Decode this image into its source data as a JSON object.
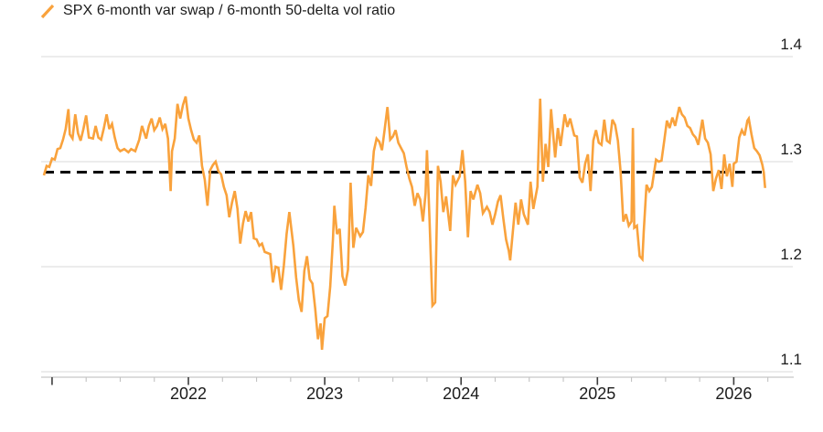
{
  "legend": {
    "label": "SPX 6-month var swap / 6-month 50-delta vol ratio",
    "marker_icon": "slash-icon"
  },
  "colors": {
    "series": "#F9A23C",
    "reference_line": "#000000",
    "grid": "#D8D8D8",
    "axis_line": "#C8C8C8",
    "tick_minor": "#C2C2C2",
    "tick_major": "#3D3D3D",
    "text": "#1B1B1B",
    "background": "#FFFFFF"
  },
  "chart_data": {
    "type": "line",
    "title": "",
    "xlabel": "",
    "ylabel": "",
    "grid": "horizontal",
    "legend_position": "top-left",
    "y_axis_side": "right",
    "x_ticks": [
      2022,
      2023,
      2024,
      2025,
      2026
    ],
    "x_tick_labels": [
      "2022",
      "2023",
      "2024",
      "2025",
      "2026"
    ],
    "x_minor_tick_step_years": 0.25,
    "x_domain": [
      2020.92,
      2026.44
    ],
    "y_ticks": [
      1.1,
      1.2,
      1.3,
      1.4
    ],
    "y_tick_labels": [
      "1.1",
      "1.2",
      "1.3",
      "1.4"
    ],
    "y_domain": [
      1.1,
      1.4
    ],
    "reference_line": {
      "value": 1.29,
      "style": "dashed",
      "color": "#000000"
    },
    "series": [
      {
        "name": "SPX 6-month var swap / 6-month 50-delta vol ratio",
        "color": "#F9A23C",
        "points": [
          [
            2020.94,
            1.287
          ],
          [
            2020.96,
            1.296
          ],
          [
            2020.98,
            1.295
          ],
          [
            2021.0,
            1.303
          ],
          [
            2021.02,
            1.302
          ],
          [
            2021.04,
            1.312
          ],
          [
            2021.06,
            1.313
          ],
          [
            2021.08,
            1.321
          ],
          [
            2021.1,
            1.331
          ],
          [
            2021.12,
            1.35
          ],
          [
            2021.13,
            1.326
          ],
          [
            2021.15,
            1.322
          ],
          [
            2021.17,
            1.345
          ],
          [
            2021.19,
            1.327
          ],
          [
            2021.21,
            1.32
          ],
          [
            2021.23,
            1.331
          ],
          [
            2021.25,
            1.344
          ],
          [
            2021.27,
            1.323
          ],
          [
            2021.3,
            1.322
          ],
          [
            2021.32,
            1.334
          ],
          [
            2021.34,
            1.323
          ],
          [
            2021.36,
            1.321
          ],
          [
            2021.38,
            1.332
          ],
          [
            2021.4,
            1.345
          ],
          [
            2021.42,
            1.331
          ],
          [
            2021.44,
            1.336
          ],
          [
            2021.46,
            1.323
          ],
          [
            2021.48,
            1.313
          ],
          [
            2021.5,
            1.31
          ],
          [
            2021.53,
            1.312
          ],
          [
            2021.56,
            1.309
          ],
          [
            2021.58,
            1.312
          ],
          [
            2021.61,
            1.31
          ],
          [
            2021.64,
            1.321
          ],
          [
            2021.66,
            1.334
          ],
          [
            2021.69,
            1.322
          ],
          [
            2021.71,
            1.334
          ],
          [
            2021.73,
            1.341
          ],
          [
            2021.75,
            1.33
          ],
          [
            2021.77,
            1.334
          ],
          [
            2021.79,
            1.342
          ],
          [
            2021.81,
            1.331
          ],
          [
            2021.83,
            1.336
          ],
          [
            2021.85,
            1.322
          ],
          [
            2021.87,
            1.272
          ],
          [
            2021.88,
            1.31
          ],
          [
            2021.9,
            1.322
          ],
          [
            2021.92,
            1.355
          ],
          [
            2021.94,
            1.341
          ],
          [
            2021.96,
            1.354
          ],
          [
            2021.98,
            1.362
          ],
          [
            2022.0,
            1.341
          ],
          [
            2022.02,
            1.33
          ],
          [
            2022.04,
            1.321
          ],
          [
            2022.06,
            1.318
          ],
          [
            2022.08,
            1.325
          ],
          [
            2022.1,
            1.296
          ],
          [
            2022.12,
            1.283
          ],
          [
            2022.14,
            1.258
          ],
          [
            2022.16,
            1.292
          ],
          [
            2022.18,
            1.297
          ],
          [
            2022.2,
            1.3
          ],
          [
            2022.22,
            1.291
          ],
          [
            2022.24,
            1.288
          ],
          [
            2022.26,
            1.276
          ],
          [
            2022.28,
            1.268
          ],
          [
            2022.3,
            1.247
          ],
          [
            2022.32,
            1.261
          ],
          [
            2022.34,
            1.272
          ],
          [
            2022.36,
            1.255
          ],
          [
            2022.38,
            1.222
          ],
          [
            2022.4,
            1.241
          ],
          [
            2022.42,
            1.253
          ],
          [
            2022.44,
            1.243
          ],
          [
            2022.46,
            1.252
          ],
          [
            2022.48,
            1.227
          ],
          [
            2022.5,
            1.226
          ],
          [
            2022.52,
            1.22
          ],
          [
            2022.54,
            1.222
          ],
          [
            2022.56,
            1.214
          ],
          [
            2022.58,
            1.213
          ],
          [
            2022.6,
            1.212
          ],
          [
            2022.62,
            1.185
          ],
          [
            2022.64,
            1.2
          ],
          [
            2022.66,
            1.199
          ],
          [
            2022.68,
            1.178
          ],
          [
            2022.7,
            1.201
          ],
          [
            2022.72,
            1.231
          ],
          [
            2022.74,
            1.252
          ],
          [
            2022.77,
            1.22
          ],
          [
            2022.79,
            1.19
          ],
          [
            2022.81,
            1.168
          ],
          [
            2022.83,
            1.157
          ],
          [
            2022.85,
            1.196
          ],
          [
            2022.87,
            1.21
          ],
          [
            2022.89,
            1.188
          ],
          [
            2022.91,
            1.184
          ],
          [
            2022.93,
            1.16
          ],
          [
            2022.95,
            1.131
          ],
          [
            2022.97,
            1.146
          ],
          [
            2022.98,
            1.121
          ],
          [
            2023.0,
            1.151
          ],
          [
            2023.02,
            1.153
          ],
          [
            2023.04,
            1.181
          ],
          [
            2023.06,
            1.226
          ],
          [
            2023.07,
            1.258
          ],
          [
            2023.09,
            1.231
          ],
          [
            2023.11,
            1.236
          ],
          [
            2023.13,
            1.191
          ],
          [
            2023.15,
            1.182
          ],
          [
            2023.17,
            1.197
          ],
          [
            2023.19,
            1.28
          ],
          [
            2023.21,
            1.218
          ],
          [
            2023.23,
            1.237
          ],
          [
            2023.26,
            1.229
          ],
          [
            2023.28,
            1.233
          ],
          [
            2023.3,
            1.256
          ],
          [
            2023.32,
            1.287
          ],
          [
            2023.34,
            1.277
          ],
          [
            2023.36,
            1.31
          ],
          [
            2023.38,
            1.322
          ],
          [
            2023.4,
            1.319
          ],
          [
            2023.42,
            1.311
          ],
          [
            2023.44,
            1.331
          ],
          [
            2023.46,
            1.352
          ],
          [
            2023.48,
            1.321
          ],
          [
            2023.5,
            1.324
          ],
          [
            2023.52,
            1.33
          ],
          [
            2023.54,
            1.318
          ],
          [
            2023.56,
            1.313
          ],
          [
            2023.58,
            1.308
          ],
          [
            2023.6,
            1.295
          ],
          [
            2023.62,
            1.284
          ],
          [
            2023.64,
            1.276
          ],
          [
            2023.66,
            1.258
          ],
          [
            2023.68,
            1.27
          ],
          [
            2023.7,
            1.264
          ],
          [
            2023.72,
            1.243
          ],
          [
            2023.74,
            1.27
          ],
          [
            2023.75,
            1.311
          ],
          [
            2023.77,
            1.24
          ],
          [
            2023.79,
            1.163
          ],
          [
            2023.81,
            1.166
          ],
          [
            2023.83,
            1.296
          ],
          [
            2023.85,
            1.281
          ],
          [
            2023.87,
            1.252
          ],
          [
            2023.89,
            1.267
          ],
          [
            2023.92,
            1.234
          ],
          [
            2023.94,
            1.287
          ],
          [
            2023.96,
            1.278
          ],
          [
            2023.99,
            1.286
          ],
          [
            2024.01,
            1.311
          ],
          [
            2024.03,
            1.281
          ],
          [
            2024.05,
            1.228
          ],
          [
            2024.07,
            1.272
          ],
          [
            2024.09,
            1.264
          ],
          [
            2024.12,
            1.278
          ],
          [
            2024.14,
            1.27
          ],
          [
            2024.16,
            1.251
          ],
          [
            2024.19,
            1.257
          ],
          [
            2024.21,
            1.252
          ],
          [
            2024.23,
            1.24
          ],
          [
            2024.25,
            1.25
          ],
          [
            2024.27,
            1.262
          ],
          [
            2024.29,
            1.268
          ],
          [
            2024.31,
            1.246
          ],
          [
            2024.33,
            1.226
          ],
          [
            2024.35,
            1.215
          ],
          [
            2024.36,
            1.206
          ],
          [
            2024.38,
            1.234
          ],
          [
            2024.4,
            1.261
          ],
          [
            2024.42,
            1.24
          ],
          [
            2024.44,
            1.264
          ],
          [
            2024.46,
            1.25
          ],
          [
            2024.49,
            1.24
          ],
          [
            2024.51,
            1.281
          ],
          [
            2024.53,
            1.255
          ],
          [
            2024.56,
            1.276
          ],
          [
            2024.58,
            1.36
          ],
          [
            2024.6,
            1.281
          ],
          [
            2024.62,
            1.317
          ],
          [
            2024.64,
            1.295
          ],
          [
            2024.66,
            1.35
          ],
          [
            2024.69,
            1.304
          ],
          [
            2024.71,
            1.332
          ],
          [
            2024.73,
            1.315
          ],
          [
            2024.76,
            1.345
          ],
          [
            2024.78,
            1.333
          ],
          [
            2024.8,
            1.341
          ],
          [
            2024.83,
            1.325
          ],
          [
            2024.85,
            1.324
          ],
          [
            2024.87,
            1.285
          ],
          [
            2024.89,
            1.28
          ],
          [
            2024.91,
            1.298
          ],
          [
            2024.93,
            1.307
          ],
          [
            2024.95,
            1.272
          ],
          [
            2024.97,
            1.32
          ],
          [
            2024.99,
            1.33
          ],
          [
            2025.01,
            1.318
          ],
          [
            2025.03,
            1.316
          ],
          [
            2025.05,
            1.34
          ],
          [
            2025.07,
            1.32
          ],
          [
            2025.09,
            1.318
          ],
          [
            2025.11,
            1.34
          ],
          [
            2025.13,
            1.335
          ],
          [
            2025.15,
            1.32
          ],
          [
            2025.17,
            1.29
          ],
          [
            2025.19,
            1.243
          ],
          [
            2025.21,
            1.25
          ],
          [
            2025.23,
            1.239
          ],
          [
            2025.25,
            1.243
          ],
          [
            2025.26,
            1.332
          ],
          [
            2025.27,
            1.237
          ],
          [
            2025.29,
            1.239
          ],
          [
            2025.31,
            1.21
          ],
          [
            2025.33,
            1.207
          ],
          [
            2025.34,
            1.234
          ],
          [
            2025.36,
            1.278
          ],
          [
            2025.38,
            1.272
          ],
          [
            2025.4,
            1.276
          ],
          [
            2025.43,
            1.302
          ],
          [
            2025.45,
            1.3
          ],
          [
            2025.47,
            1.301
          ],
          [
            2025.49,
            1.32
          ],
          [
            2025.51,
            1.339
          ],
          [
            2025.53,
            1.332
          ],
          [
            2025.55,
            1.342
          ],
          [
            2025.57,
            1.334
          ],
          [
            2025.6,
            1.352
          ],
          [
            2025.62,
            1.345
          ],
          [
            2025.64,
            1.342
          ],
          [
            2025.66,
            1.334
          ],
          [
            2025.68,
            1.332
          ],
          [
            2025.7,
            1.326
          ],
          [
            2025.72,
            1.323
          ],
          [
            2025.74,
            1.316
          ],
          [
            2025.77,
            1.34
          ],
          [
            2025.79,
            1.322
          ],
          [
            2025.81,
            1.318
          ],
          [
            2025.83,
            1.307
          ],
          [
            2025.85,
            1.272
          ],
          [
            2025.87,
            1.284
          ],
          [
            2025.89,
            1.292
          ],
          [
            2025.91,
            1.274
          ],
          [
            2025.93,
            1.307
          ],
          [
            2025.95,
            1.286
          ],
          [
            2025.97,
            1.298
          ],
          [
            2025.99,
            1.276
          ],
          [
            2026.0,
            1.298
          ],
          [
            2026.02,
            1.3
          ],
          [
            2026.04,
            1.323
          ],
          [
            2026.06,
            1.33
          ],
          [
            2026.08,
            1.325
          ],
          [
            2026.1,
            1.339
          ],
          [
            2026.11,
            1.341
          ],
          [
            2026.13,
            1.326
          ],
          [
            2026.15,
            1.313
          ],
          [
            2026.17,
            1.31
          ],
          [
            2026.19,
            1.306
          ],
          [
            2026.21,
            1.297
          ],
          [
            2026.22,
            1.29
          ],
          [
            2026.23,
            1.275
          ]
        ]
      }
    ]
  }
}
